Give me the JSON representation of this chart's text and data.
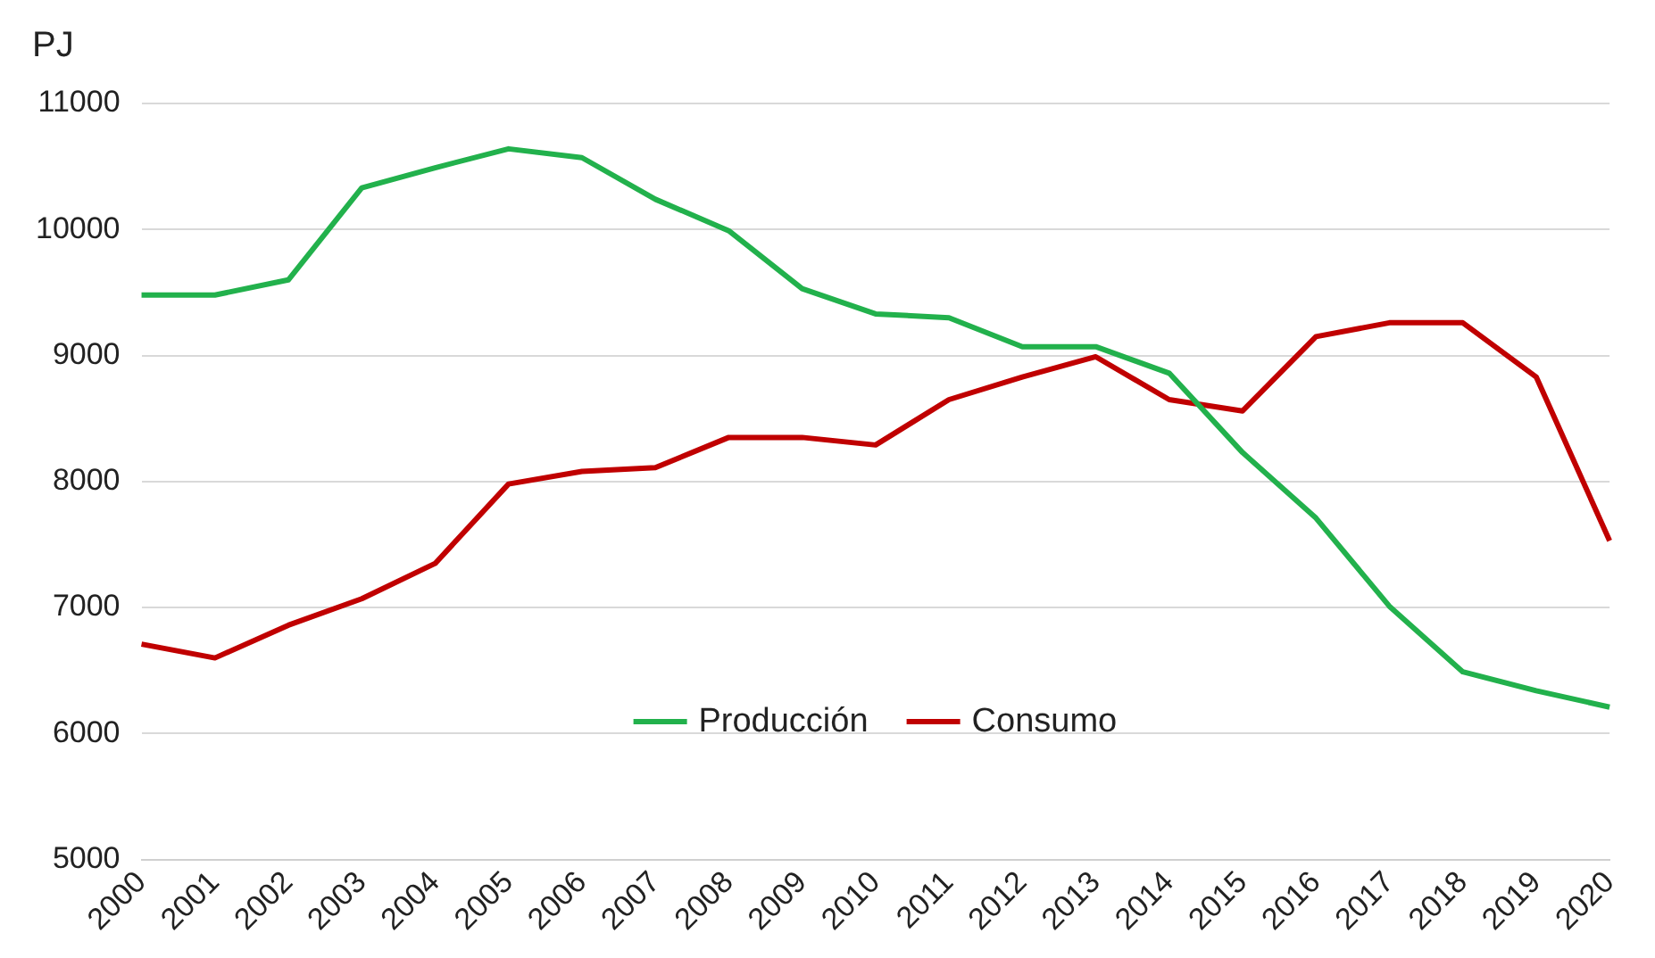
{
  "chart_data": {
    "type": "line",
    "ylabel": "PJ",
    "categories": [
      "2000",
      "2001",
      "2002",
      "2003",
      "2004",
      "2005",
      "2006",
      "2007",
      "2008",
      "2009",
      "2010",
      "2011",
      "2012",
      "2013",
      "2014",
      "2015",
      "2016",
      "2017",
      "2018",
      "2019",
      "2020"
    ],
    "series": [
      {
        "name": "Producción",
        "color": "#22b14c",
        "values": [
          9480,
          9480,
          9600,
          10330,
          10490,
          10640,
          10570,
          10240,
          9990,
          9530,
          9330,
          9300,
          9070,
          9070,
          8860,
          8230,
          7710,
          7010,
          6490,
          6340,
          6210
        ]
      },
      {
        "name": "Consumo",
        "color": "#c00000",
        "values": [
          6710,
          6600,
          6860,
          7070,
          7350,
          7980,
          8080,
          8110,
          8350,
          8350,
          8290,
          8650,
          8830,
          8990,
          8650,
          8560,
          9150,
          9260,
          9260,
          8830,
          7530
        ]
      }
    ],
    "ylim": [
      5000,
      11000
    ],
    "yticks": [
      5000,
      6000,
      7000,
      8000,
      9000,
      10000,
      11000
    ],
    "grid": "y",
    "legend": "bottom",
    "marker": "none",
    "line_style": "solid"
  }
}
